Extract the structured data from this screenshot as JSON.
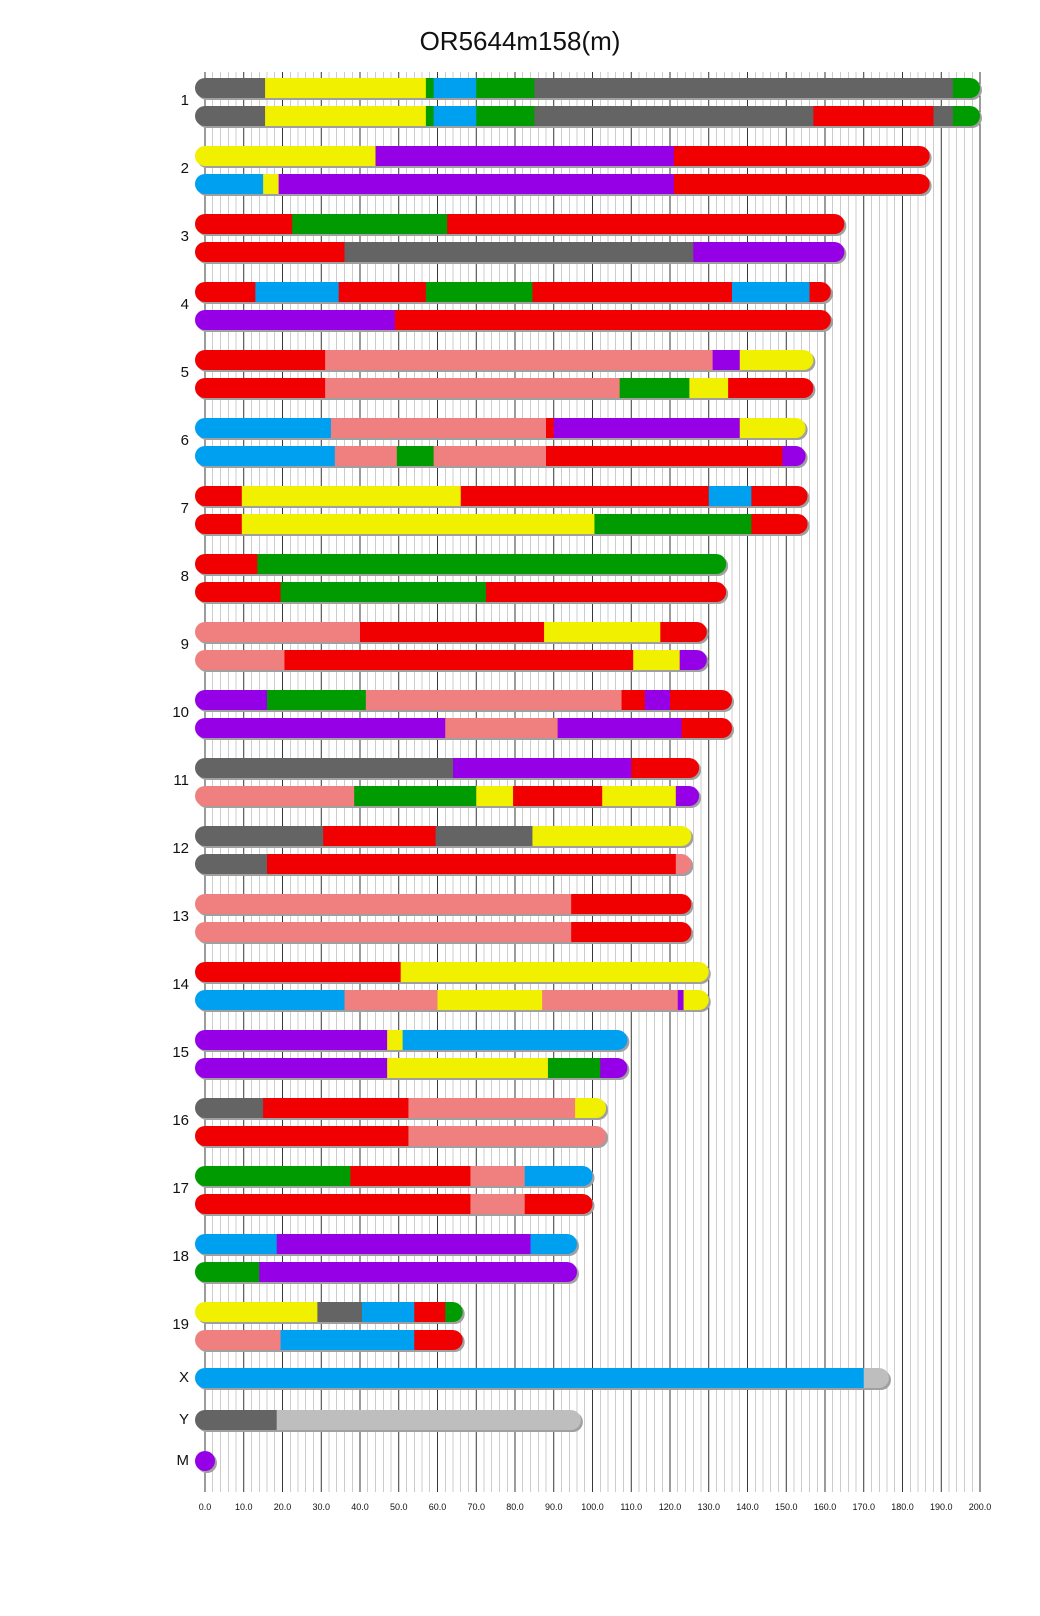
{
  "chart_data": {
    "type": "chromosome-painting",
    "title": "OR5644m158(m)",
    "x_axis": {
      "min": 0,
      "max": 200,
      "tick_step": 10,
      "minor_step": 2,
      "tick_labels": [
        "0.0",
        "10.0",
        "20.0",
        "30.0",
        "40.0",
        "50.0",
        "60.0",
        "70.0",
        "80.0",
        "90.0",
        "100.0",
        "110.0",
        "120.0",
        "130.0",
        "140.0",
        "150.0",
        "160.0",
        "170.0",
        "180.0",
        "190.0",
        "200.0"
      ]
    },
    "colors": {
      "gray": "#646464",
      "yellow": "#f0f000",
      "green": "#009b00",
      "blue": "#00a0f0",
      "red": "#f00000",
      "purple": "#9600e6",
      "salmon": "#f08080",
      "lightgray": "#bebebe"
    },
    "chromosomes": [
      {
        "label": "1",
        "haplotypes": [
          [
            [
              0,
              15.5,
              "gray"
            ],
            [
              15.5,
              57,
              "yellow"
            ],
            [
              57,
              59,
              "green"
            ],
            [
              59,
              70,
              "blue"
            ],
            [
              70,
              85,
              "green"
            ],
            [
              85,
              193,
              "gray"
            ],
            [
              193,
              200,
              "green"
            ]
          ],
          [
            [
              0,
              15.5,
              "gray"
            ],
            [
              15.5,
              57,
              "yellow"
            ],
            [
              57,
              59,
              "green"
            ],
            [
              59,
              70,
              "blue"
            ],
            [
              70,
              85,
              "green"
            ],
            [
              85,
              157,
              "gray"
            ],
            [
              157,
              188,
              "red"
            ],
            [
              188,
              193,
              "gray"
            ],
            [
              193,
              200,
              "green"
            ]
          ]
        ]
      },
      {
        "label": "2",
        "haplotypes": [
          [
            [
              0,
              44,
              "yellow"
            ],
            [
              44,
              121,
              "purple"
            ],
            [
              121,
              187,
              "red"
            ]
          ],
          [
            [
              0,
              15,
              "blue"
            ],
            [
              15,
              19,
              "yellow"
            ],
            [
              19,
              121,
              "purple"
            ],
            [
              121,
              187,
              "red"
            ]
          ]
        ]
      },
      {
        "label": "3",
        "haplotypes": [
          [
            [
              0,
              22.5,
              "red"
            ],
            [
              22.5,
              62.5,
              "green"
            ],
            [
              62.5,
              165,
              "red"
            ]
          ],
          [
            [
              0,
              36,
              "red"
            ],
            [
              36,
              126,
              "gray"
            ],
            [
              126,
              165,
              "purple"
            ]
          ]
        ]
      },
      {
        "label": "4",
        "haplotypes": [
          [
            [
              0,
              13,
              "red"
            ],
            [
              13,
              34.5,
              "blue"
            ],
            [
              34.5,
              57,
              "red"
            ],
            [
              57,
              84.5,
              "green"
            ],
            [
              84.5,
              136,
              "red"
            ],
            [
              136,
              156,
              "blue"
            ],
            [
              156,
              161.5,
              "red"
            ]
          ],
          [
            [
              0,
              49,
              "purple"
            ],
            [
              49,
              161.5,
              "red"
            ]
          ]
        ]
      },
      {
        "label": "5",
        "haplotypes": [
          [
            [
              0,
              31,
              "red"
            ],
            [
              31,
              131,
              "salmon"
            ],
            [
              131,
              138,
              "purple"
            ],
            [
              138,
              157,
              "yellow"
            ]
          ],
          [
            [
              0,
              31,
              "red"
            ],
            [
              31,
              107,
              "salmon"
            ],
            [
              107,
              125,
              "green"
            ],
            [
              125,
              135,
              "yellow"
            ],
            [
              135,
              157,
              "red"
            ]
          ]
        ]
      },
      {
        "label": "6",
        "haplotypes": [
          [
            [
              0,
              32.5,
              "blue"
            ],
            [
              32.5,
              88,
              "salmon"
            ],
            [
              88,
              90,
              "red"
            ],
            [
              90,
              138,
              "purple"
            ],
            [
              138,
              155,
              "yellow"
            ]
          ],
          [
            [
              0,
              33.5,
              "blue"
            ],
            [
              33.5,
              49.5,
              "salmon"
            ],
            [
              49.5,
              59,
              "green"
            ],
            [
              59,
              88,
              "salmon"
            ],
            [
              88,
              149,
              "red"
            ],
            [
              149,
              155,
              "purple"
            ]
          ]
        ]
      },
      {
        "label": "7",
        "haplotypes": [
          [
            [
              0,
              9.5,
              "red"
            ],
            [
              9.5,
              66,
              "yellow"
            ],
            [
              66,
              130,
              "red"
            ],
            [
              130,
              141,
              "blue"
            ],
            [
              141,
              155.5,
              "red"
            ]
          ],
          [
            [
              0,
              9.5,
              "red"
            ],
            [
              9.5,
              100.5,
              "yellow"
            ],
            [
              100.5,
              141,
              "green"
            ],
            [
              141,
              155.5,
              "red"
            ]
          ]
        ]
      },
      {
        "label": "8",
        "haplotypes": [
          [
            [
              0,
              13.5,
              "red"
            ],
            [
              13.5,
              134.5,
              "green"
            ]
          ],
          [
            [
              0,
              19.5,
              "red"
            ],
            [
              19.5,
              72.5,
              "green"
            ],
            [
              72.5,
              134.5,
              "red"
            ]
          ]
        ]
      },
      {
        "label": "9",
        "haplotypes": [
          [
            [
              0,
              40,
              "salmon"
            ],
            [
              40,
              87.5,
              "red"
            ],
            [
              87.5,
              117.5,
              "yellow"
            ],
            [
              117.5,
              129.5,
              "red"
            ]
          ],
          [
            [
              0,
              20.5,
              "salmon"
            ],
            [
              20.5,
              110.5,
              "red"
            ],
            [
              110.5,
              122.5,
              "yellow"
            ],
            [
              122.5,
              129.5,
              "purple"
            ]
          ]
        ]
      },
      {
        "label": "10",
        "haplotypes": [
          [
            [
              0,
              16,
              "purple"
            ],
            [
              16,
              41.5,
              "green"
            ],
            [
              41.5,
              107.5,
              "salmon"
            ],
            [
              107.5,
              113.5,
              "red"
            ],
            [
              113.5,
              120,
              "purple"
            ],
            [
              120,
              136,
              "red"
            ]
          ],
          [
            [
              0,
              62,
              "purple"
            ],
            [
              62,
              91,
              "salmon"
            ],
            [
              91,
              123,
              "purple"
            ],
            [
              123,
              136,
              "red"
            ]
          ]
        ]
      },
      {
        "label": "11",
        "haplotypes": [
          [
            [
              0,
              64,
              "gray"
            ],
            [
              64,
              110,
              "purple"
            ],
            [
              110,
              127.5,
              "red"
            ]
          ],
          [
            [
              0,
              38.5,
              "salmon"
            ],
            [
              38.5,
              70,
              "green"
            ],
            [
              70,
              79.5,
              "yellow"
            ],
            [
              79.5,
              102.5,
              "red"
            ],
            [
              102.5,
              121.5,
              "yellow"
            ],
            [
              121.5,
              127.5,
              "purple"
            ]
          ]
        ]
      },
      {
        "label": "12",
        "haplotypes": [
          [
            [
              0,
              30.5,
              "gray"
            ],
            [
              30.5,
              59.5,
              "red"
            ],
            [
              59.5,
              84.5,
              "gray"
            ],
            [
              84.5,
              125.5,
              "yellow"
            ]
          ],
          [
            [
              0,
              16,
              "gray"
            ],
            [
              16,
              121.5,
              "red"
            ],
            [
              121.5,
              125.5,
              "salmon"
            ]
          ]
        ]
      },
      {
        "label": "13",
        "haplotypes": [
          [
            [
              0,
              94.5,
              "salmon"
            ],
            [
              94.5,
              125.5,
              "red"
            ]
          ],
          [
            [
              0,
              94.5,
              "salmon"
            ],
            [
              94.5,
              125.5,
              "red"
            ]
          ]
        ]
      },
      {
        "label": "14",
        "haplotypes": [
          [
            [
              0,
              50.5,
              "red"
            ],
            [
              50.5,
              130,
              "yellow"
            ]
          ],
          [
            [
              0,
              36,
              "blue"
            ],
            [
              36,
              60,
              "salmon"
            ],
            [
              60,
              87,
              "yellow"
            ],
            [
              87,
              122,
              "salmon"
            ],
            [
              122,
              123.5,
              "purple"
            ],
            [
              123.5,
              130,
              "yellow"
            ]
          ]
        ]
      },
      {
        "label": "15",
        "haplotypes": [
          [
            [
              0,
              47,
              "purple"
            ],
            [
              47,
              51,
              "yellow"
            ],
            [
              51,
              109,
              "blue"
            ]
          ],
          [
            [
              0,
              47,
              "purple"
            ],
            [
              47,
              88.5,
              "yellow"
            ],
            [
              88.5,
              102,
              "green"
            ],
            [
              102,
              109,
              "purple"
            ]
          ]
        ]
      },
      {
        "label": "16",
        "haplotypes": [
          [
            [
              0,
              15,
              "gray"
            ],
            [
              15,
              52.5,
              "red"
            ],
            [
              52.5,
              95.5,
              "salmon"
            ],
            [
              95.5,
              103.5,
              "yellow"
            ]
          ],
          [
            [
              0,
              52.5,
              "red"
            ],
            [
              52.5,
              103.5,
              "salmon"
            ]
          ]
        ]
      },
      {
        "label": "17",
        "haplotypes": [
          [
            [
              0,
              37.5,
              "green"
            ],
            [
              37.5,
              68.5,
              "red"
            ],
            [
              68.5,
              82.5,
              "salmon"
            ],
            [
              82.5,
              100,
              "blue"
            ]
          ],
          [
            [
              0,
              68.5,
              "red"
            ],
            [
              68.5,
              82.5,
              "salmon"
            ],
            [
              82.5,
              100,
              "red"
            ]
          ]
        ]
      },
      {
        "label": "18",
        "haplotypes": [
          [
            [
              0,
              18.5,
              "blue"
            ],
            [
              18.5,
              84,
              "purple"
            ],
            [
              84,
              96,
              "blue"
            ]
          ],
          [
            [
              0,
              14,
              "green"
            ],
            [
              14,
              96,
              "purple"
            ]
          ]
        ]
      },
      {
        "label": "19",
        "haplotypes": [
          [
            [
              0,
              29,
              "yellow"
            ],
            [
              29,
              40.5,
              "gray"
            ],
            [
              40.5,
              54,
              "blue"
            ],
            [
              54,
              62,
              "red"
            ],
            [
              62,
              66.5,
              "green"
            ]
          ],
          [
            [
              0,
              19.5,
              "salmon"
            ],
            [
              19.5,
              54,
              "blue"
            ],
            [
              54,
              66.5,
              "red"
            ]
          ]
        ]
      },
      {
        "label": "X",
        "haplotypes": [
          [
            [
              0,
              170,
              "blue"
            ],
            [
              170,
              176.5,
              "lightgray"
            ]
          ]
        ]
      },
      {
        "label": "Y",
        "haplotypes": [
          [
            [
              0,
              18.5,
              "gray"
            ],
            [
              18.5,
              97,
              "lightgray"
            ]
          ]
        ]
      },
      {
        "label": "M",
        "haplotypes": [
          [
            [
              0,
              0.1,
              "purple"
            ]
          ]
        ]
      }
    ]
  }
}
